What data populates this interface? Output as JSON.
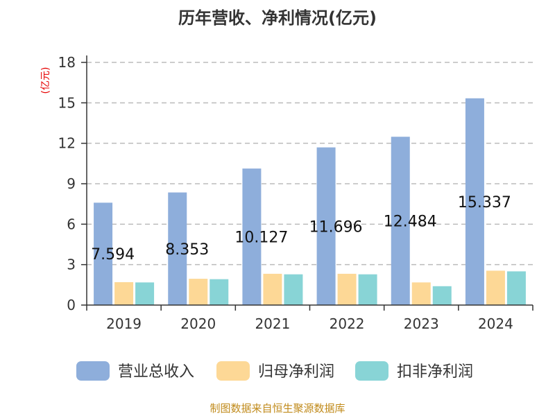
{
  "chart_data": {
    "type": "bar",
    "title": "历年营收、净利情况(亿元)",
    "unit_label": "(亿元)",
    "categories": [
      "2019",
      "2020",
      "2021",
      "2022",
      "2023",
      "2024"
    ],
    "series": [
      {
        "name": "营业总收入",
        "color": "#8eaedb",
        "values": [
          7.594,
          8.353,
          10.127,
          11.696,
          12.484,
          15.337
        ]
      },
      {
        "name": "归母净利润",
        "color": "#fdd896",
        "values": [
          1.7,
          1.95,
          2.32,
          2.32,
          1.68,
          2.55
        ]
      },
      {
        "name": "扣非净利润",
        "color": "#88d4d6",
        "values": [
          1.68,
          1.92,
          2.28,
          2.28,
          1.4,
          2.5
        ]
      }
    ],
    "data_labels": [
      "7.594",
      "8.353",
      "10.127",
      "11.696",
      "12.484",
      "15.337"
    ],
    "ylim": [
      0,
      18
    ],
    "yticks": [
      "0",
      "3",
      "6",
      "9",
      "12",
      "15",
      "18"
    ],
    "grid": true,
    "legend_position": "bottom"
  },
  "source_text": "制图数据来自恒生聚源数据库"
}
